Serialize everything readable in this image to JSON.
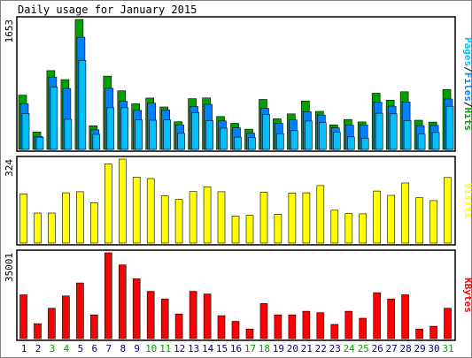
{
  "chart_data": [
    {
      "type": "bar",
      "title": "Daily usage for January 2015",
      "ylabel_top": "1653",
      "legend": [
        "Pages",
        "Files",
        "Hits"
      ],
      "categories": [
        "1",
        "2",
        "3",
        "4",
        "5",
        "6",
        "7",
        "8",
        "9",
        "10",
        "11",
        "12",
        "13",
        "14",
        "15",
        "16",
        "17",
        "18",
        "19",
        "20",
        "21",
        "22",
        "23",
        "24",
        "25",
        "26",
        "27",
        "28",
        "29",
        "30",
        "31"
      ],
      "weekend_days": [
        "3",
        "4",
        "10",
        "11",
        "17",
        "18",
        "24",
        "25",
        "31"
      ],
      "ylim": [
        0,
        1653
      ],
      "series": [
        {
          "name": "Hits",
          "values": [
            690,
            222,
            1002,
            887,
            1653,
            300,
            932,
            745,
            580,
            653,
            540,
            352,
            646,
            654,
            418,
            332,
            258,
            635,
            389,
            452,
            616,
            484,
            312,
            380,
            350,
            714,
            625,
            733,
            371,
            347,
            761
          ]
        },
        {
          "name": "Files",
          "values": [
            580,
            166,
            920,
            775,
            1427,
            249,
            777,
            612,
            496,
            588,
            501,
            311,
            545,
            574,
            362,
            274,
            207,
            522,
            332,
            375,
            479,
            437,
            274,
            308,
            312,
            599,
            550,
            603,
            302,
            305,
            641
          ]
        },
        {
          "name": "Pages",
          "values": [
            457,
            153,
            790,
            384,
            1132,
            191,
            530,
            530,
            374,
            371,
            374,
            205,
            469,
            366,
            270,
            156,
            150,
            446,
            200,
            238,
            361,
            341,
            218,
            160,
            142,
            460,
            452,
            367,
            194,
            215,
            549
          ]
        }
      ]
    },
    {
      "type": "bar",
      "ylabel_top": "324",
      "legend": [
        "Visits"
      ],
      "categories": [
        "1",
        "2",
        "3",
        "4",
        "5",
        "6",
        "7",
        "8",
        "9",
        "10",
        "11",
        "12",
        "13",
        "14",
        "15",
        "16",
        "17",
        "18",
        "19",
        "20",
        "21",
        "22",
        "23",
        "24",
        "25",
        "26",
        "27",
        "28",
        "29",
        "30",
        "31"
      ],
      "ylim": [
        0,
        324
      ],
      "series": [
        {
          "name": "Visits",
          "values": [
            190,
            116,
            116,
            194,
            198,
            156,
            306,
            324,
            254,
            249,
            182,
            168,
            199,
            217,
            198,
            104,
            107,
            196,
            111,
            193,
            194,
            222,
            127,
            114,
            113,
            201,
            184,
            232,
            175,
            164,
            253
          ]
        }
      ]
    },
    {
      "type": "bar",
      "ylabel_top": "35001",
      "legend": [
        "KBytes"
      ],
      "categories": [
        "1",
        "2",
        "3",
        "4",
        "5",
        "6",
        "7",
        "8",
        "9",
        "10",
        "11",
        "12",
        "13",
        "14",
        "15",
        "16",
        "17",
        "18",
        "19",
        "20",
        "21",
        "22",
        "23",
        "24",
        "25",
        "26",
        "27",
        "28",
        "29",
        "30",
        "31"
      ],
      "ylim": [
        0,
        35001
      ],
      "series": [
        {
          "name": "KBytes",
          "values": [
            17857,
            6054,
            12373,
            17386,
            22682,
            9667,
            35001,
            30046,
            24396,
            19286,
            16155,
            10016,
            19286,
            18178,
            9333,
            7042,
            3890,
            14295,
            9667,
            9667,
            11149,
            10572,
            5759,
            11149,
            8315,
            18733,
            16155,
            17857,
            3890,
            4998,
            12373
          ]
        }
      ]
    }
  ],
  "colors": {
    "hits": "#00a000",
    "files": "#0080ff",
    "pages": "#00c0ff",
    "visits": "#ffff00",
    "kbytes": "#ff0000",
    "weekend_label": "#00a000",
    "weekday_label": "#000080",
    "panel_border": "#000000",
    "page_border": "#808080"
  }
}
